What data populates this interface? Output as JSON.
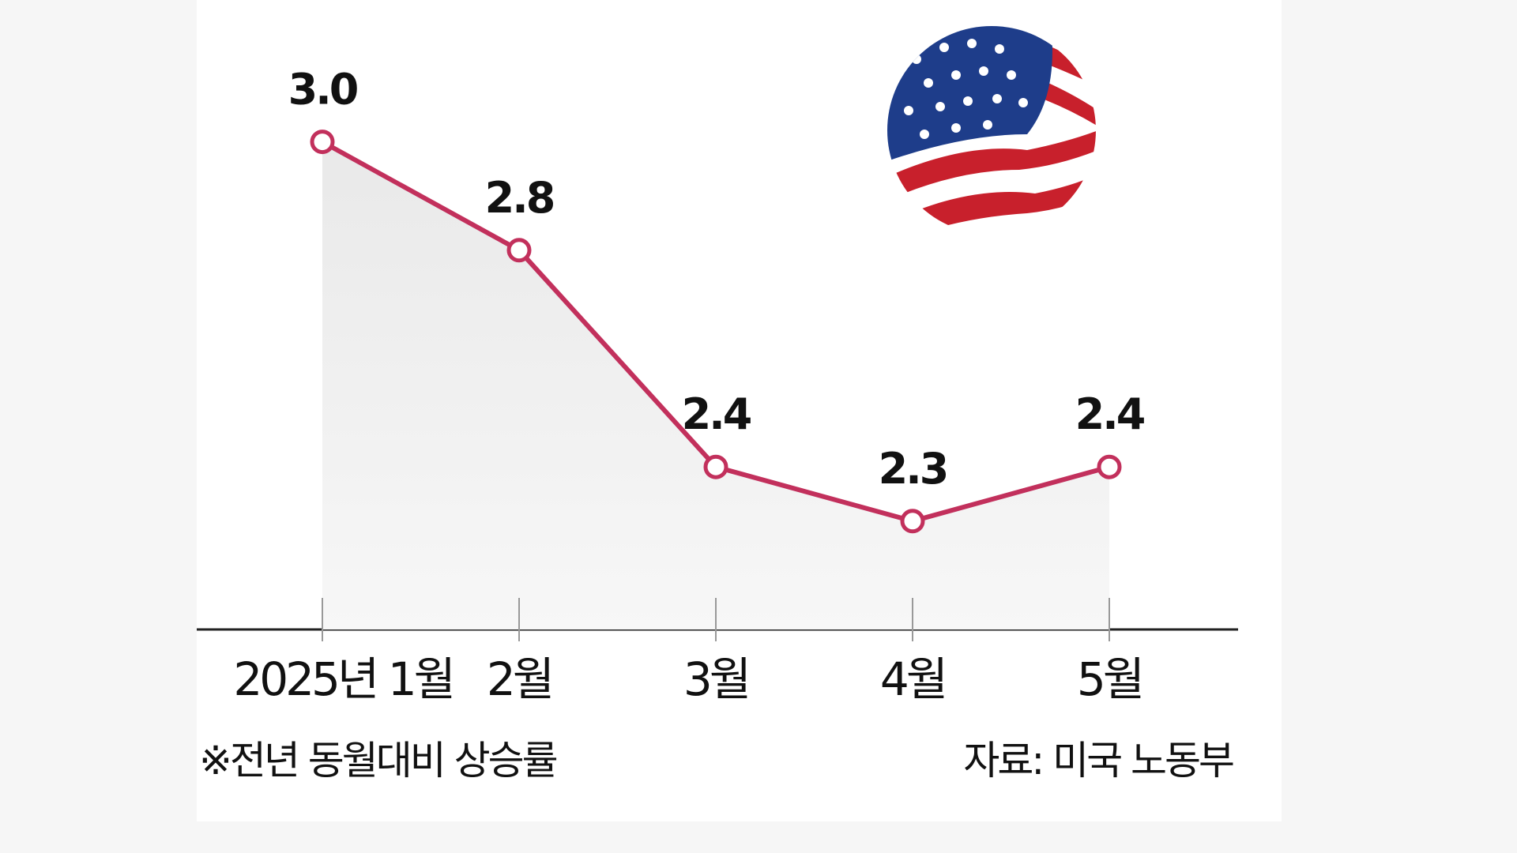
{
  "chart_data": {
    "type": "line",
    "categories": [
      "2025년 1월",
      "2월",
      "3월",
      "4월",
      "5월"
    ],
    "values": [
      3.0,
      2.8,
      2.4,
      2.3,
      2.4
    ],
    "value_labels": [
      "3.0",
      "2.8",
      "2.4",
      "2.3",
      "2.4"
    ],
    "color": "#c2305c",
    "ylim": [
      2.1,
      3.1
    ],
    "notes": [
      "※전년 동월대비 상승률",
      "자료: 미국 노동부"
    ]
  }
}
